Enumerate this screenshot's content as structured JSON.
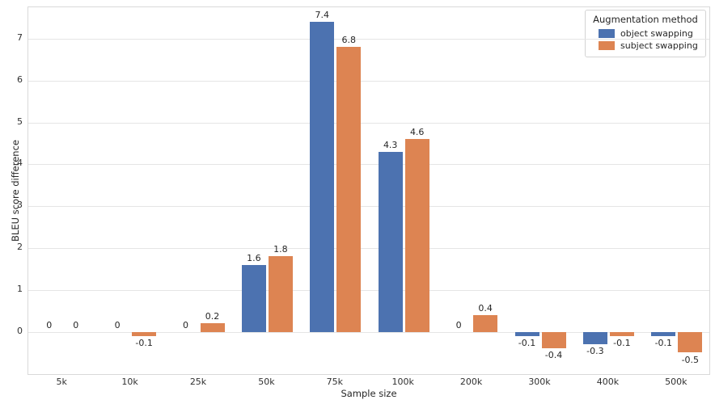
{
  "chart_data": {
    "type": "bar",
    "title": "",
    "xlabel": "Sample size",
    "ylabel": "BLEU score difference",
    "legend_title": "Augmentation method",
    "legend_position": "upper right",
    "grid": true,
    "categories": [
      "5k",
      "10k",
      "25k",
      "50k",
      "75k",
      "100k",
      "200k",
      "300k",
      "400k",
      "500k"
    ],
    "series": [
      {
        "name": "object swapping",
        "color": "#4c72b0",
        "values": [
          0,
          0,
          0,
          1.6,
          7.4,
          4.3,
          0,
          -0.1,
          -0.3,
          -0.1
        ]
      },
      {
        "name": "subject swapping",
        "color": "#dd8452",
        "values": [
          0,
          -0.1,
          0.2,
          1.8,
          6.8,
          4.6,
          0.4,
          -0.4,
          -0.1,
          -0.5
        ]
      }
    ],
    "y_ticks": [
      0,
      1,
      2,
      3,
      4,
      5,
      6,
      7
    ],
    "ylim": [
      -1.05,
      7.75
    ]
  }
}
